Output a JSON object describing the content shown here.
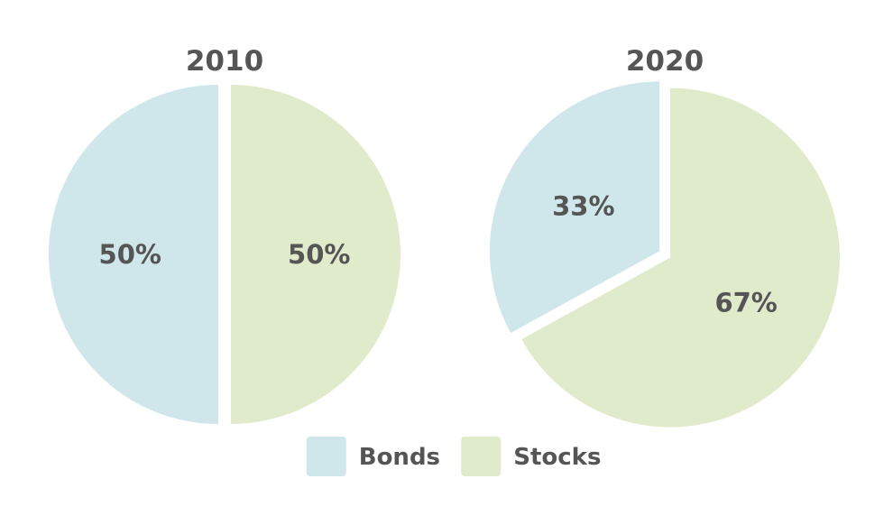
{
  "chart_data": [
    {
      "type": "pie",
      "title": "2010",
      "slices": [
        {
          "name": "Bonds",
          "value": 50,
          "label": "50%",
          "color": "#cfe6ea"
        },
        {
          "name": "Stocks",
          "value": 50,
          "label": "50%",
          "color": "#e0ebcb"
        }
      ]
    },
    {
      "type": "pie",
      "title": "2020",
      "slices": [
        {
          "name": "Bonds",
          "value": 33,
          "label": "33%",
          "color": "#cfe6ea"
        },
        {
          "name": "Stocks",
          "value": 67,
          "label": "67%",
          "color": "#e0ebcb"
        }
      ]
    }
  ],
  "legend": {
    "placement": "bottom",
    "items": [
      {
        "name": "Bonds",
        "color": "#cfe6ea"
      },
      {
        "name": "Stocks",
        "color": "#e0ebcb"
      }
    ]
  }
}
